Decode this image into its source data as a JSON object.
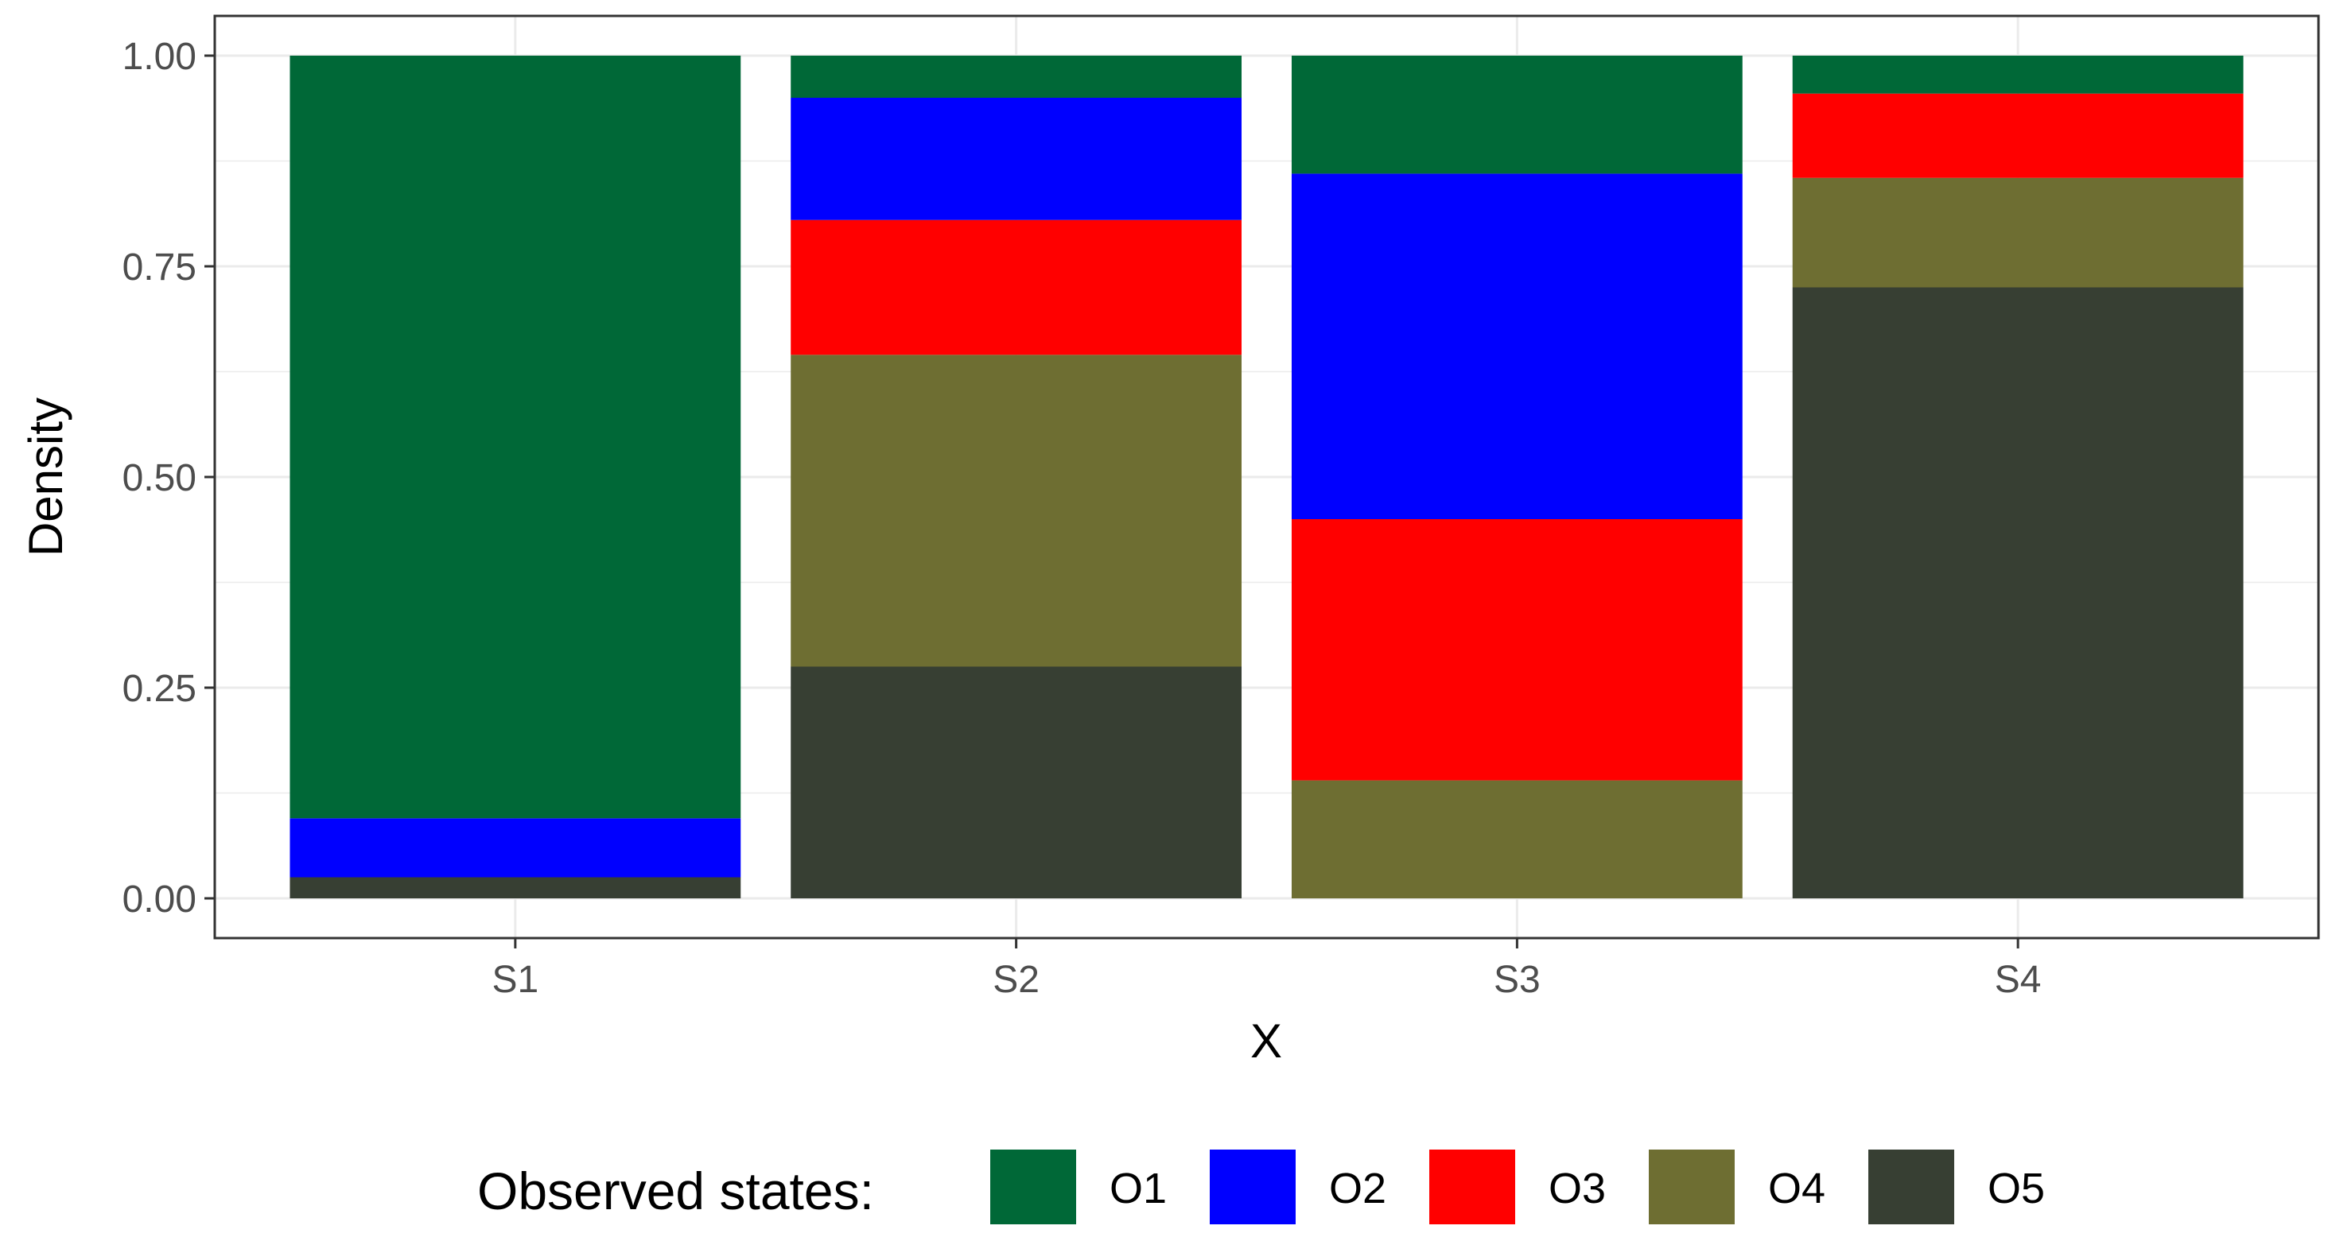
{
  "chart_data": {
    "type": "bar",
    "stacked": true,
    "categories": [
      "S1",
      "S2",
      "S3",
      "S4"
    ],
    "series": [
      {
        "name": "O5",
        "color": "#373F33",
        "values": [
          0.025,
          0.275,
          0.0,
          0.725
        ]
      },
      {
        "name": "O4",
        "color": "#6E6E32",
        "values": [
          0.0,
          0.37,
          0.14,
          0.13
        ]
      },
      {
        "name": "O3",
        "color": "#FF0000",
        "values": [
          0.0,
          0.16,
          0.31,
          0.1
        ]
      },
      {
        "name": "O2",
        "color": "#0000FF",
        "values": [
          0.07,
          0.145,
          0.41,
          0.0
        ]
      },
      {
        "name": "O1",
        "color": "#006837",
        "values": [
          0.905,
          0.05,
          0.14,
          0.045
        ]
      }
    ],
    "xlabel": "X",
    "ylabel": "Density",
    "ylim": [
      0,
      1
    ],
    "y_ticks": [
      "0.00",
      "0.25",
      "0.50",
      "0.75",
      "1.00"
    ],
    "grid": true,
    "legend": {
      "title": "Observed states:",
      "position": "bottom",
      "items": [
        {
          "label": "O1",
          "color": "#006837"
        },
        {
          "label": "O2",
          "color": "#0000FF"
        },
        {
          "label": "O3",
          "color": "#FF0000"
        },
        {
          "label": "O4",
          "color": "#6E6E32"
        },
        {
          "label": "O5",
          "color": "#373F33"
        }
      ]
    }
  }
}
